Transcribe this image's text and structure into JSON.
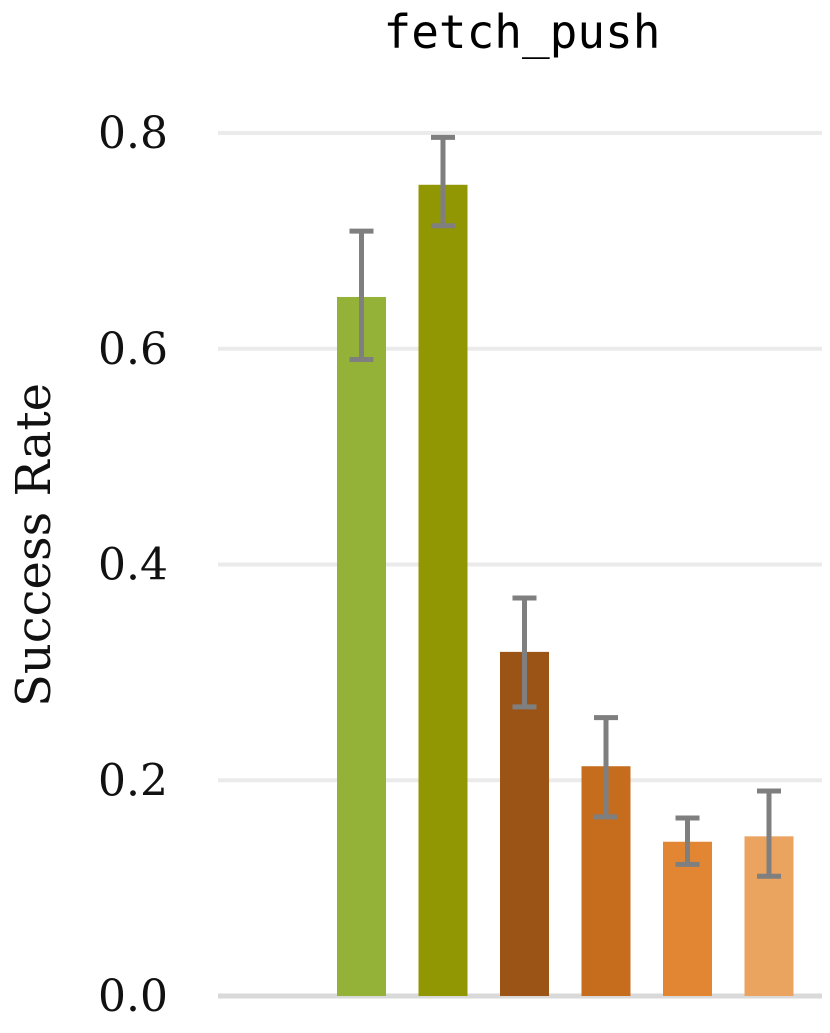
{
  "chart_data": {
    "type": "bar",
    "title": "fetch_push",
    "ylabel": "Success Rate",
    "xlabel": "",
    "ylim": [
      0,
      0.8
    ],
    "yticks": [
      "0.0",
      "0.2",
      "0.4",
      "0.6",
      "0.8"
    ],
    "grid": true,
    "values": [
      0.648,
      0.752,
      0.319,
      0.213,
      0.143,
      0.148
    ],
    "error_low": [
      0.59,
      0.714,
      0.268,
      0.166,
      0.122,
      0.111
    ],
    "error_high": [
      0.709,
      0.796,
      0.369,
      0.258,
      0.165,
      0.19
    ],
    "colors": [
      "#94b238",
      "#919703",
      "#9b5415",
      "#c56c1d",
      "#e38633",
      "#eba360"
    ]
  }
}
